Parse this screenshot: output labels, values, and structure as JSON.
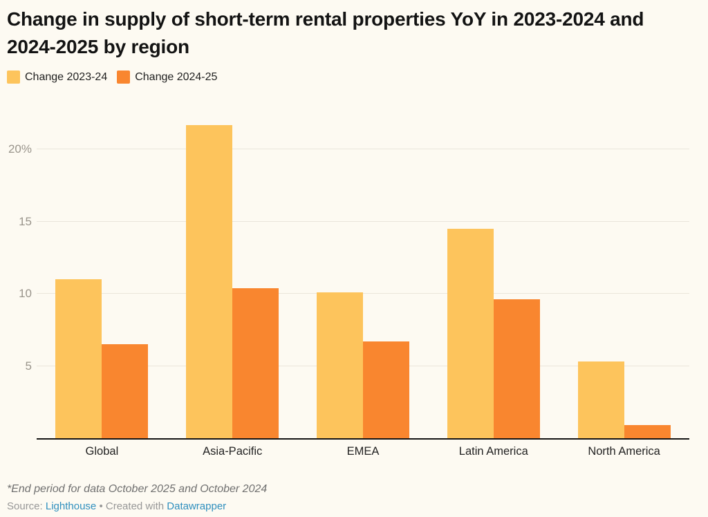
{
  "title": "Change in supply of short-term rental properties YoY in 2023-2024 and 2024-2025 by region",
  "legend": {
    "items": [
      {
        "label": "Change 2023-24",
        "color": "#FDC45C"
      },
      {
        "label": "Change 2024-25",
        "color": "#F9862F"
      }
    ]
  },
  "chart_data": {
    "type": "bar",
    "categories": [
      "Global",
      "Asia-Pacific",
      "EMEA",
      "Latin America",
      "North America"
    ],
    "series": [
      {
        "name": "Change 2023-24",
        "color": "#FDC45C",
        "values": [
          11.0,
          21.7,
          10.1,
          14.5,
          5.3
        ]
      },
      {
        "name": "Change 2024-25",
        "color": "#F9862F",
        "values": [
          6.5,
          10.4,
          6.7,
          9.6,
          0.9
        ]
      }
    ],
    "title": "Change in supply of short-term rental properties YoY in 2023-2024 and 2024-2025 by region",
    "xlabel": "",
    "ylabel": "",
    "unit": "%",
    "y_ticks": [
      5,
      10,
      15,
      20
    ],
    "y_tick_labels": [
      "5",
      "10",
      "15",
      "20%"
    ],
    "ylim": [
      0,
      22.5
    ],
    "grid": true,
    "legend_position": "top-left",
    "colors": {
      "background": "#FDFAF2",
      "gridline": "#EAE5DB",
      "axis": "#141414"
    }
  },
  "footnote": "*End period for data October 2025 and October 2024",
  "source": {
    "label": "Source:",
    "name": "Lighthouse",
    "divider": "•",
    "created": "Created with",
    "tool": "Datawrapper"
  }
}
